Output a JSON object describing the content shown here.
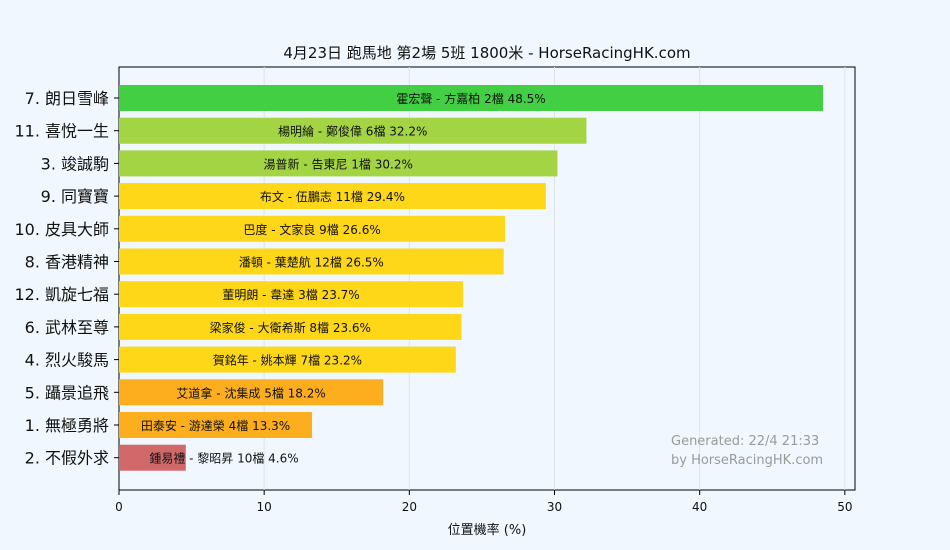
{
  "chart_data": {
    "type": "bar",
    "orientation": "horizontal",
    "title": "4月23日  跑馬地  第2場  5班  1800米 - HorseRacingHK.com",
    "xlabel": "位置機率 (%)",
    "ylabel": "",
    "xlim": [
      0,
      50.7
    ],
    "xticks": [
      0,
      10,
      20,
      30,
      40,
      50
    ],
    "grid": true,
    "categories": [
      "7. 朗日雪峰",
      "11. 喜悅一生",
      "3. 竣誠駒",
      "9. 同寶寶",
      "10. 皮具大師",
      "8. 香港精神",
      "12. 凱旋七福",
      "6. 武林至尊",
      "4. 烈火駿馬",
      "5. 躡景追飛",
      "1. 無極勇將",
      "2. 不假外求"
    ],
    "values": [
      48.5,
      32.2,
      30.2,
      29.4,
      26.6,
      26.5,
      23.7,
      23.6,
      23.2,
      18.2,
      13.3,
      4.6
    ],
    "bar_labels": [
      "霍宏聲 - 方嘉柏 2檔  48.5%",
      "楊明綸 - 鄭俊偉 6檔  32.2%",
      "湯普新 - 告東尼 1檔  30.2%",
      "布文 - 伍鵬志 11檔  29.4%",
      "巴度 - 文家良 9檔  26.6%",
      "潘頓 - 葉楚航 12檔  26.5%",
      "董明朗 - 韋達 3檔  23.7%",
      "梁家俊 - 大衛希斯 8檔  23.6%",
      "賀銘年 - 姚本輝 7檔  23.2%",
      "艾道拿 - 沈集成 5檔  18.2%",
      "田泰安 - 游達榮 4檔  13.3%",
      "鍾易禮 - 黎昭昇 10檔  4.6%"
    ],
    "colors": [
      "#43cf43",
      "#a3d444",
      "#a3d444",
      "#fdd718",
      "#fdd718",
      "#fdd718",
      "#fdd718",
      "#fdd718",
      "#fdd718",
      "#fdae1f",
      "#fdae1f",
      "#d1686a"
    ]
  },
  "annotation": {
    "line1": "Generated: 22/4 21:33",
    "line2": "by HorseRacingHK.com"
  }
}
